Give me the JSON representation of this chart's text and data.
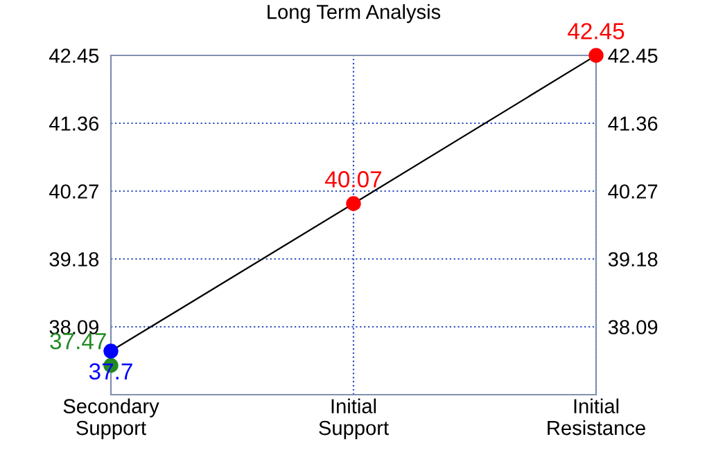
{
  "chart_data": {
    "type": "scatter",
    "title": "Long Term Analysis",
    "categories": [
      "Secondary\nSupport",
      "Initial\nSupport",
      "Initial\nResistance"
    ],
    "series": [
      {
        "type": "line",
        "color": "#000000",
        "x": [
          "Secondary\nSupport",
          "Initial\nSupport",
          "Initial\nResistance"
        ],
        "values": [
          37.7,
          40.07,
          42.45
        ]
      },
      {
        "color": "#228b22",
        "x": [
          "Secondary\nSupport"
        ],
        "values": [
          37.47
        ],
        "value_labels": [
          "37.47"
        ],
        "marker": "circle"
      },
      {
        "color": "#0000ff",
        "x": [
          "Secondary\nSupport"
        ],
        "values": [
          37.7
        ],
        "value_labels": [
          "37.7"
        ],
        "marker": "circle"
      },
      {
        "color": "#ff0000",
        "x": [
          "Initial\nSupport",
          "Initial\nResistance"
        ],
        "values": [
          40.07,
          42.45
        ],
        "value_labels": [
          "40.07",
          "42.45"
        ],
        "marker": "circle"
      }
    ],
    "ylim": [
      37.0,
      42.45
    ],
    "yticks": [
      38.09,
      39.18,
      40.27,
      41.36,
      42.45
    ],
    "y2lim": [
      37.0,
      42.45
    ],
    "y2ticks": [
      38.09,
      39.18,
      40.27,
      41.36,
      42.45
    ],
    "grid": true
  }
}
